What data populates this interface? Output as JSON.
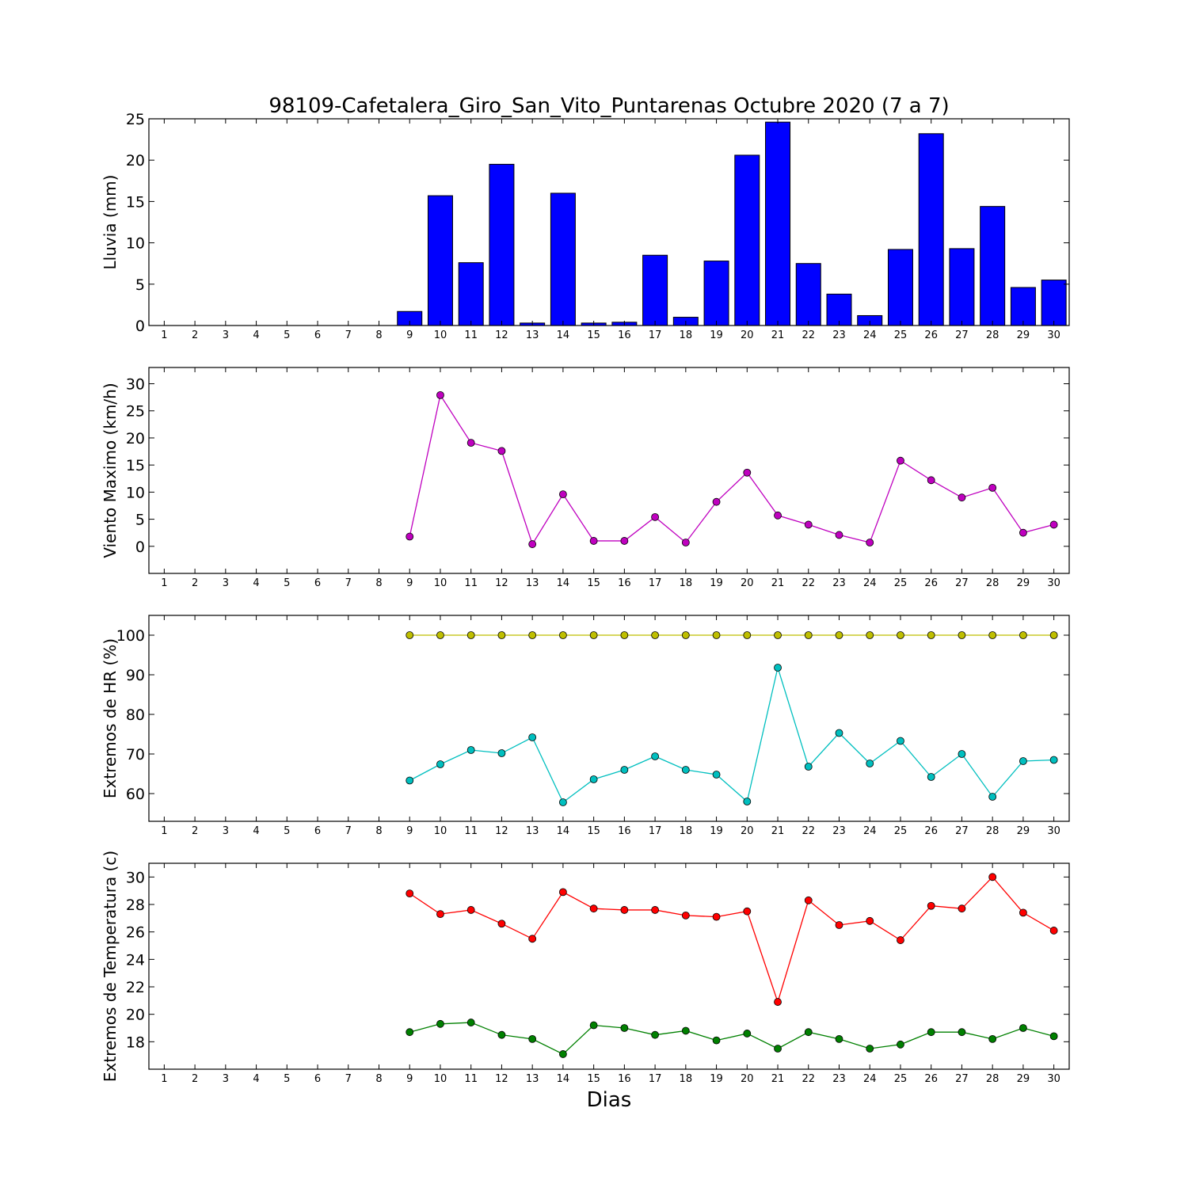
{
  "title": "98109-Cafetalera_Giro_San_Vito_Puntarenas Octubre 2020  (7 a 7)",
  "xlabel": "Dias",
  "chart_data": [
    {
      "type": "bar",
      "ylabel": "Lluvia (mm)",
      "ylim": [
        0,
        25
      ],
      "yticks": [
        0,
        5,
        10,
        15,
        20,
        25
      ],
      "xlim": [
        0.5,
        30.5
      ],
      "xticks": [
        1,
        2,
        3,
        4,
        5,
        6,
        7,
        8,
        9,
        10,
        11,
        12,
        13,
        14,
        15,
        16,
        17,
        18,
        19,
        20,
        21,
        22,
        23,
        24,
        25,
        26,
        27,
        28,
        29,
        30
      ],
      "x": [
        9,
        10,
        11,
        12,
        13,
        14,
        15,
        16,
        17,
        18,
        19,
        20,
        21,
        22,
        23,
        24,
        25,
        26,
        27,
        28,
        29,
        30
      ],
      "series": [
        {
          "color": "#0000ff",
          "values": [
            1.7,
            15.7,
            7.6,
            19.5,
            0.3,
            16.0,
            0.3,
            0.4,
            8.5,
            1.0,
            7.8,
            20.6,
            24.6,
            7.5,
            3.8,
            1.2,
            9.2,
            23.2,
            9.3,
            14.4,
            4.6,
            5.5
          ]
        }
      ]
    },
    {
      "type": "line",
      "ylabel": "Viento Maximo (km/h)",
      "ylim": [
        -5,
        33
      ],
      "yticks": [
        0,
        5,
        10,
        15,
        20,
        25,
        30
      ],
      "xlim": [
        0.5,
        30.5
      ],
      "xticks": [
        1,
        2,
        3,
        4,
        5,
        6,
        7,
        8,
        9,
        10,
        11,
        12,
        13,
        14,
        15,
        16,
        17,
        18,
        19,
        20,
        21,
        22,
        23,
        24,
        25,
        26,
        27,
        28,
        29,
        30
      ],
      "x": [
        9,
        10,
        11,
        12,
        13,
        14,
        15,
        16,
        17,
        18,
        19,
        20,
        21,
        22,
        23,
        24,
        25,
        26,
        27,
        28,
        29,
        30
      ],
      "series": [
        {
          "color": "#bf00bf",
          "values": [
            1.8,
            27.9,
            19.1,
            17.6,
            0.4,
            9.6,
            1.0,
            1.0,
            5.4,
            0.7,
            8.2,
            13.6,
            5.7,
            4.0,
            2.1,
            0.7,
            15.8,
            12.2,
            9.0,
            10.8,
            2.5,
            4.0
          ]
        }
      ]
    },
    {
      "type": "line",
      "ylabel": "Extremos de HR (%)",
      "ylim": [
        53,
        105
      ],
      "yticks": [
        60,
        70,
        80,
        90,
        100
      ],
      "xlim": [
        0.5,
        30.5
      ],
      "xticks": [
        1,
        2,
        3,
        4,
        5,
        6,
        7,
        8,
        9,
        10,
        11,
        12,
        13,
        14,
        15,
        16,
        17,
        18,
        19,
        20,
        21,
        22,
        23,
        24,
        25,
        26,
        27,
        28,
        29,
        30
      ],
      "x": [
        9,
        10,
        11,
        12,
        13,
        14,
        15,
        16,
        17,
        18,
        19,
        20,
        21,
        22,
        23,
        24,
        25,
        26,
        27,
        28,
        29,
        30
      ],
      "series": [
        {
          "color": "#bfbf00",
          "values": [
            100,
            100,
            100,
            100,
            100,
            100,
            100,
            100,
            100,
            100,
            100,
            100,
            100,
            100,
            100,
            100,
            100,
            100,
            100,
            100,
            100,
            100
          ]
        },
        {
          "color": "#00bfbf",
          "values": [
            63.3,
            67.4,
            71.0,
            70.2,
            74.2,
            57.8,
            63.6,
            66.0,
            69.4,
            66.0,
            64.8,
            58.0,
            91.8,
            66.8,
            75.3,
            67.6,
            73.3,
            64.2,
            70.0,
            59.2,
            68.2,
            68.5
          ]
        }
      ]
    },
    {
      "type": "line",
      "ylabel": "Extremos de Temperatura (c)",
      "ylim": [
        16,
        31
      ],
      "yticks": [
        18,
        20,
        22,
        24,
        26,
        28,
        30
      ],
      "xlim": [
        0.5,
        30.5
      ],
      "xticks": [
        1,
        2,
        3,
        4,
        5,
        6,
        7,
        8,
        9,
        10,
        11,
        12,
        13,
        14,
        15,
        16,
        17,
        18,
        19,
        20,
        21,
        22,
        23,
        24,
        25,
        26,
        27,
        28,
        29,
        30
      ],
      "x": [
        9,
        10,
        11,
        12,
        13,
        14,
        15,
        16,
        17,
        18,
        19,
        20,
        21,
        22,
        23,
        24,
        25,
        26,
        27,
        28,
        29,
        30
      ],
      "series": [
        {
          "color": "#ff0000",
          "values": [
            28.8,
            27.3,
            27.6,
            26.6,
            25.5,
            28.9,
            27.7,
            27.6,
            27.6,
            27.2,
            27.1,
            27.5,
            20.9,
            28.3,
            26.5,
            26.8,
            25.4,
            27.9,
            27.7,
            30.0,
            27.4,
            26.1
          ]
        },
        {
          "color": "#008000",
          "values": [
            18.7,
            19.3,
            19.4,
            18.5,
            18.2,
            17.1,
            19.2,
            19.0,
            18.5,
            18.8,
            18.1,
            18.6,
            17.5,
            18.7,
            18.2,
            17.5,
            17.8,
            18.7,
            18.7,
            18.2,
            19.0,
            18.4
          ]
        }
      ]
    }
  ]
}
